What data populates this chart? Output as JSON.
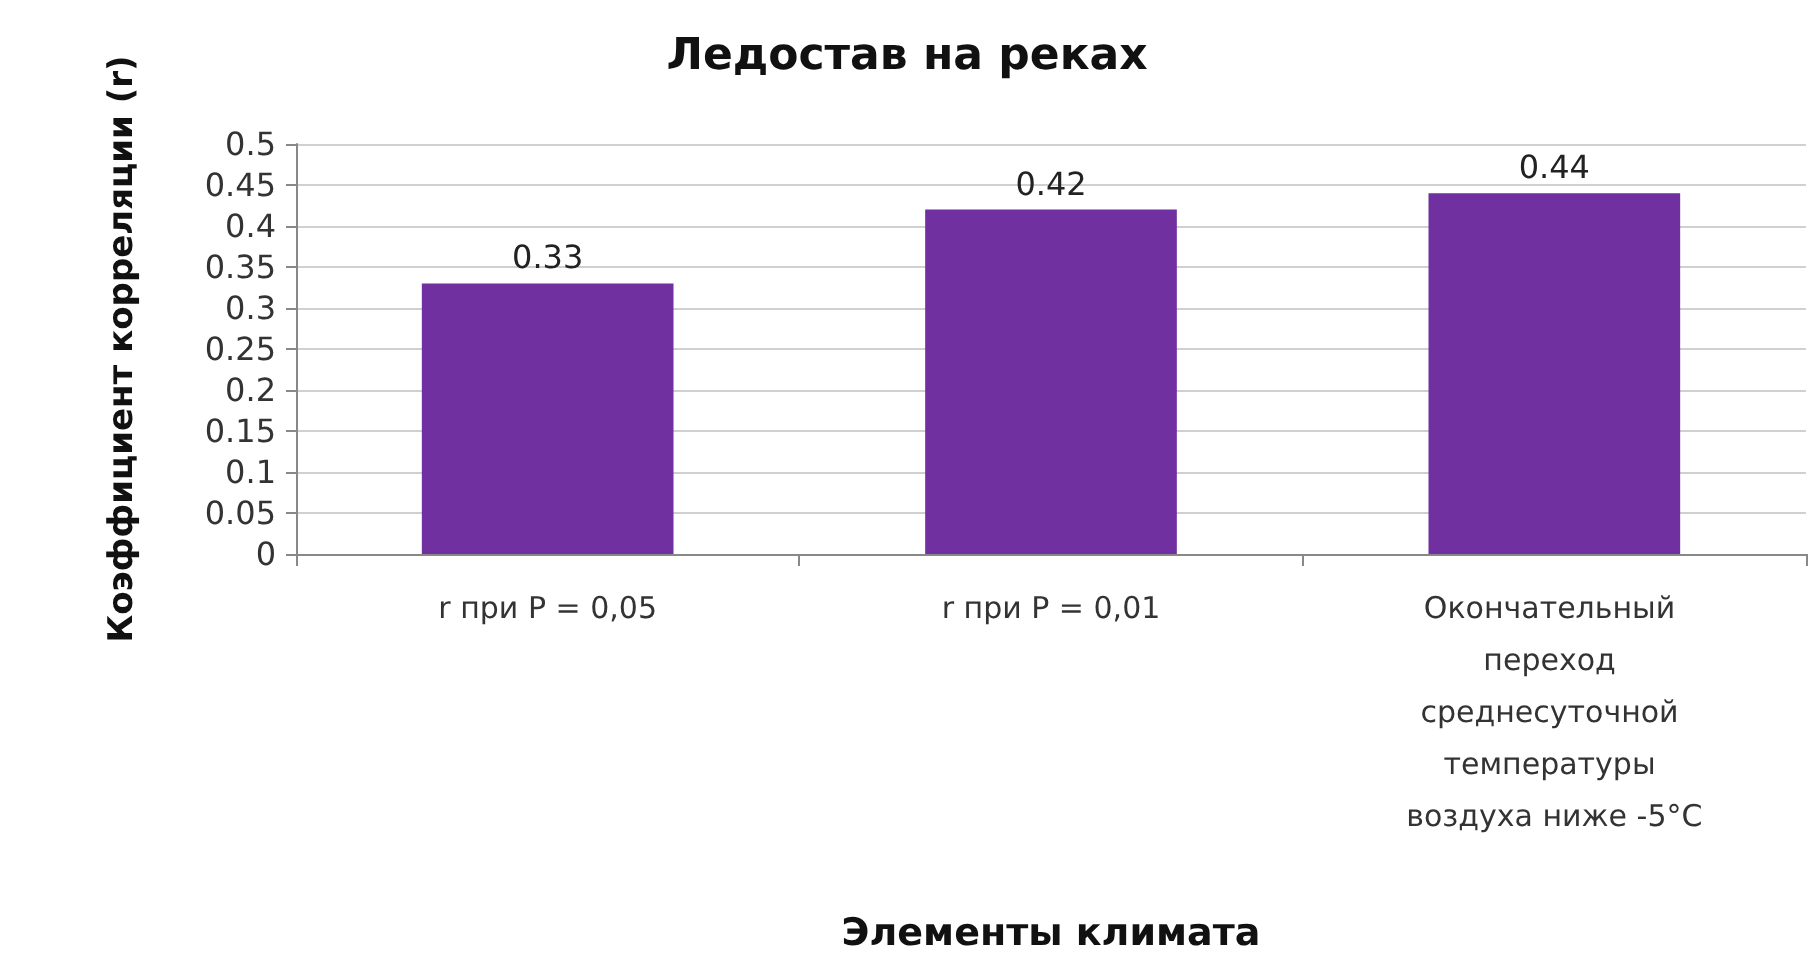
{
  "chart_data": {
    "type": "bar",
    "title": "Ледостав на реках",
    "xlabel": "Элементы климата",
    "ylabel": "Коэффициент корреляции (r)",
    "categories": [
      "r при Р = 0,05",
      "r при Р = 0,01",
      "Окончательный переход среднесуточной температуры воздуха ниже -5°С"
    ],
    "values": [
      0.33,
      0.42,
      0.44
    ],
    "color": "#7030a0",
    "ylim": [
      0,
      0.5
    ],
    "yticks": [
      0,
      0.05,
      0.1,
      0.15,
      0.2,
      0.25,
      0.3,
      0.35,
      0.4,
      0.45,
      0.5
    ],
    "grid": "y",
    "data_labels": true
  }
}
